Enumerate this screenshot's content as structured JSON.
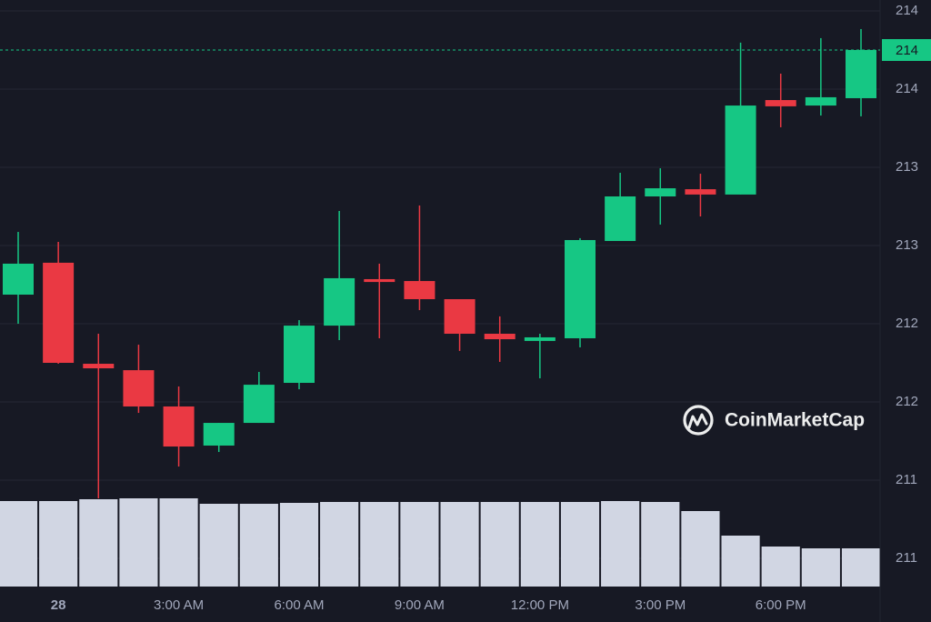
{
  "chart_data": {
    "type": "candlestick",
    "watermark": "CoinMarketCap",
    "categories": [
      null,
      "28",
      null,
      null,
      "3:00 AM",
      null,
      null,
      "6:00 AM",
      null,
      null,
      "9:00 AM",
      null,
      null,
      "12:00 PM",
      null,
      null,
      "3:00 PM",
      null,
      null,
      "6:00 PM",
      null,
      null
    ],
    "open": [
      212.436,
      212.64,
      211.994,
      211.953,
      211.721,
      211.471,
      211.616,
      211.872,
      212.238,
      212.535,
      212.523,
      212.407,
      212.186,
      212.14,
      212.157,
      212.779,
      213.064,
      213.11,
      213.076,
      213.68,
      213.645,
      213.692
    ],
    "high": [
      212.837,
      212.773,
      212.186,
      212.116,
      211.849,
      211.616,
      211.942,
      212.273,
      212.971,
      212.634,
      213.006,
      212.407,
      212.297,
      212.186,
      212.797,
      213.215,
      213.244,
      213.209,
      214.047,
      213.849,
      214.076,
      214.134
    ],
    "low": [
      212.25,
      211.994,
      211.134,
      211.68,
      211.337,
      211.43,
      211.616,
      211.831,
      212.145,
      212.157,
      212.337,
      212.076,
      212.006,
      211.901,
      212.099,
      212.779,
      212.884,
      212.936,
      213.076,
      213.506,
      213.581,
      213.576
    ],
    "close": [
      212.634,
      212.0,
      211.965,
      211.721,
      211.465,
      211.616,
      211.86,
      212.238,
      212.541,
      212.517,
      212.407,
      212.186,
      212.151,
      212.163,
      212.785,
      213.064,
      213.116,
      213.076,
      213.645,
      213.64,
      213.698,
      214.0
    ],
    "volume": [
      94,
      94,
      96,
      97,
      97,
      91,
      91,
      92,
      93,
      93,
      93,
      93,
      93,
      93,
      93,
      94,
      93,
      83,
      56,
      44,
      42,
      42
    ],
    "volume_lim": [
      0,
      100
    ],
    "up_color": "#16c784",
    "down_color": "#ea3943",
    "volume_color": "#d1d6e3",
    "last_price": {
      "value": 214.0,
      "label": "214"
    },
    "ylim": [
      210.75,
      214.25
    ],
    "yticks": [
      {
        "value": 210.75,
        "label": "211"
      },
      {
        "value": 211.25,
        "label": "211"
      },
      {
        "value": 211.75,
        "label": "212"
      },
      {
        "value": 212.25,
        "label": "212"
      },
      {
        "value": 212.75,
        "label": "213"
      },
      {
        "value": 213.25,
        "label": "213"
      },
      {
        "value": 213.75,
        "label": "214"
      },
      {
        "value": 214.25,
        "label": "214"
      }
    ],
    "grid": true
  }
}
